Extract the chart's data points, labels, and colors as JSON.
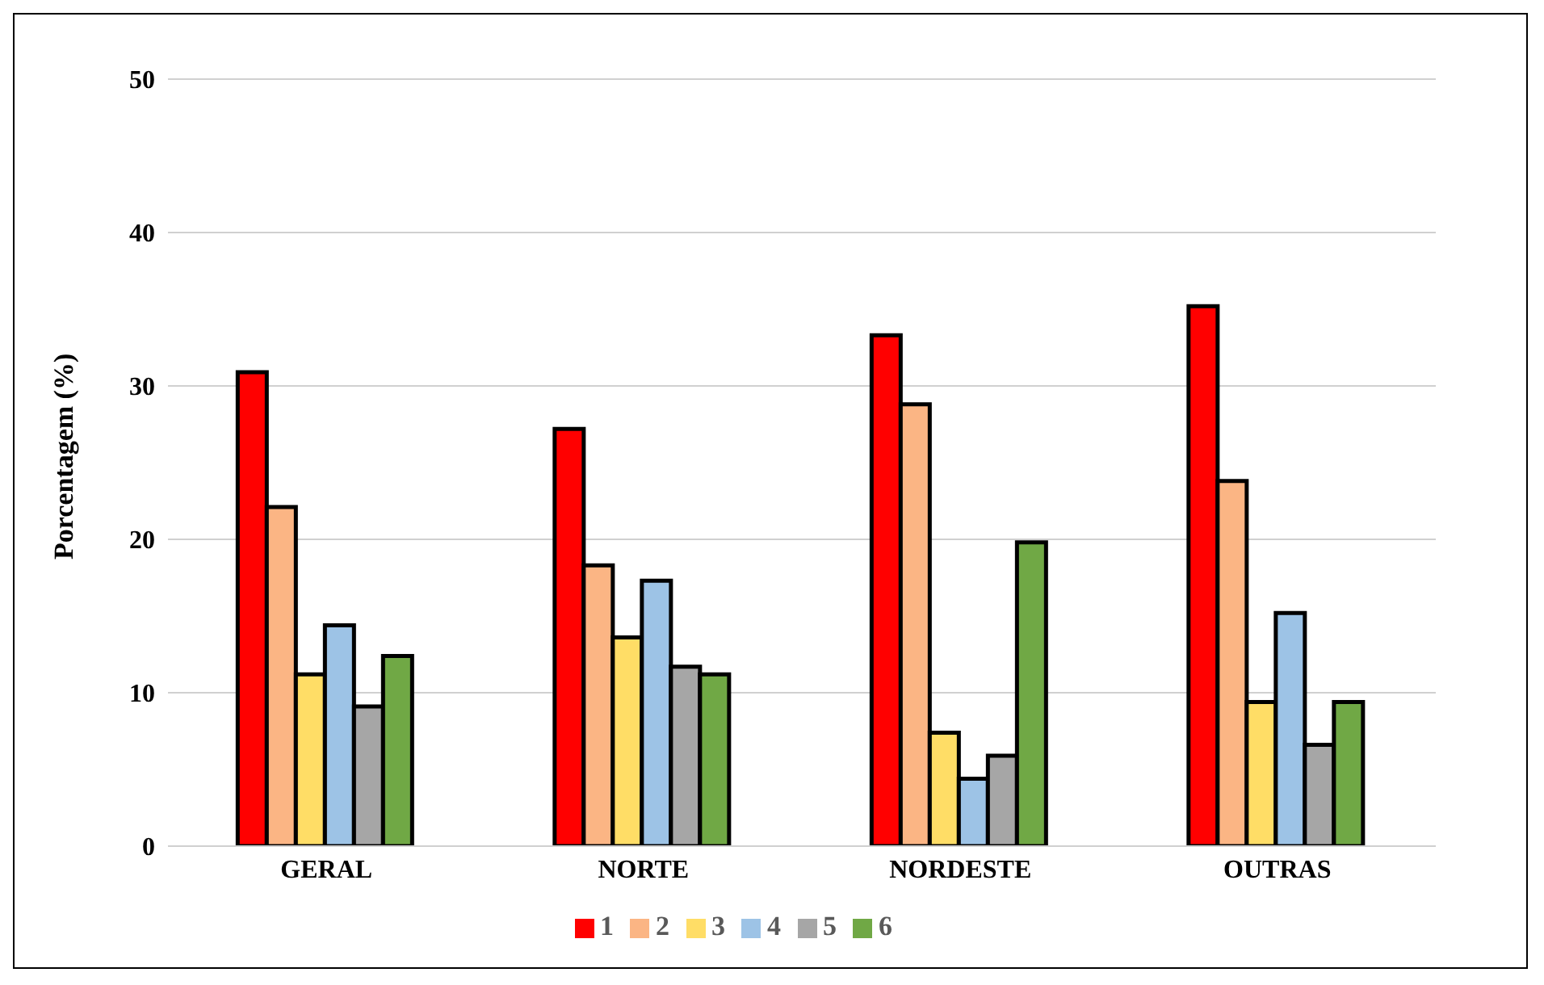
{
  "chart_data": {
    "type": "bar",
    "ylabel": "Porcentagem (%)",
    "categories": [
      "GERAL",
      "NORTE",
      "NORDESTE",
      "OUTRAS"
    ],
    "series": [
      {
        "name": "1",
        "color": "#ff0000",
        "values": [
          30.9,
          27.2,
          33.3,
          35.2
        ]
      },
      {
        "name": "2",
        "color": "#fbb584",
        "values": [
          22.1,
          18.3,
          28.8,
          23.8
        ]
      },
      {
        "name": "3",
        "color": "#ffdd66",
        "values": [
          11.2,
          13.6,
          7.4,
          9.4
        ]
      },
      {
        "name": "4",
        "color": "#9dc3e6",
        "values": [
          14.4,
          17.3,
          4.4,
          15.2
        ]
      },
      {
        "name": "5",
        "color": "#a6a6a6",
        "values": [
          9.1,
          11.7,
          5.9,
          6.6
        ]
      },
      {
        "name": "6",
        "color": "#70a845",
        "values": [
          12.4,
          11.2,
          19.8,
          9.4
        ]
      }
    ],
    "ylim": [
      0,
      50
    ],
    "yticks": [
      0,
      10,
      20,
      30,
      40,
      50
    ],
    "grid": "y",
    "legend": "bottom"
  }
}
